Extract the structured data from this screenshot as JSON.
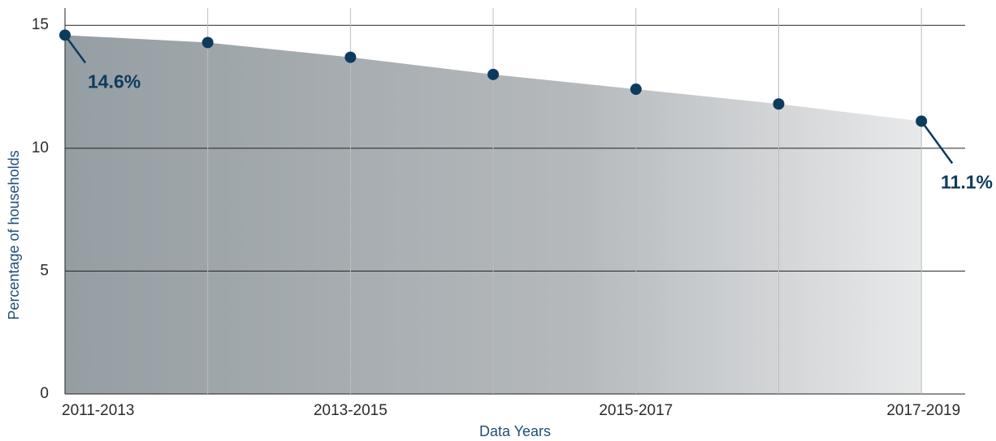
{
  "chart_data": {
    "type": "area",
    "x_label": "Data Years",
    "y_label": "Percentage of households",
    "categories": [
      "2011-2013",
      null,
      "2013-2015",
      null,
      "2015-2017",
      null,
      "2017-2019"
    ],
    "values": [
      14.6,
      14.3,
      13.7,
      13.0,
      12.4,
      11.8,
      11.1
    ],
    "value_labels": [
      "14.6%",
      null,
      null,
      null,
      null,
      null,
      "11.1%"
    ],
    "color": "#0d3b5e",
    "ylim": [
      0,
      15.7
    ],
    "yticks": [
      0,
      5,
      10,
      15
    ],
    "grid": true
  }
}
